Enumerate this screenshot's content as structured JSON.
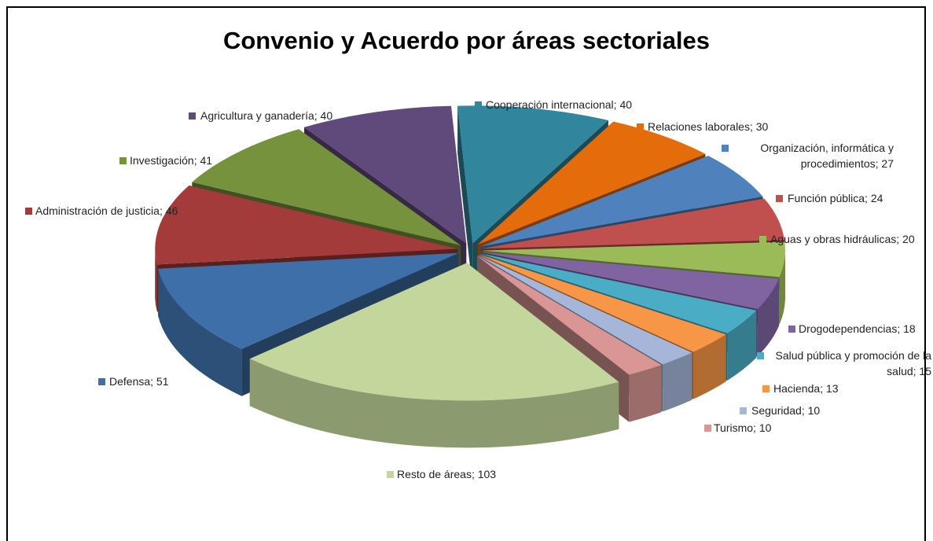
{
  "chart_data": {
    "type": "pie3d",
    "title": "Convenio y Acuerdo por áreas sectoriales",
    "categories": [
      "Cooperación internacional; 40",
      "Relaciones laborales; 30",
      "Organización, informática y procedimientos; 27",
      "Función pública; 24",
      "Aguas y obras hidráulicas; 20",
      "Drogodependencias; 18",
      "Salud pública y promoción de la salud; 15",
      "Hacienda; 13",
      "Seguridad; 10",
      "Turismo; 10",
      "Resto de áreas; 103",
      "Defensa; 51",
      "Administración de justicia; 46",
      "Investigación; 41",
      "Agricultura y ganadería; 40"
    ],
    "values": [
      40,
      30,
      27,
      24,
      20,
      18,
      15,
      13,
      10,
      10,
      103,
      51,
      46,
      41,
      40
    ],
    "colors": [
      "#31859C",
      "#E46C0A",
      "#4F81BD",
      "#C0504D",
      "#9BBB59",
      "#8064A2",
      "#4BACC6",
      "#F79646",
      "#A5B6D9",
      "#D99694",
      "#C3D69B",
      "#3F6FA8",
      "#A33B3A",
      "#76923C",
      "#604A7B"
    ]
  }
}
